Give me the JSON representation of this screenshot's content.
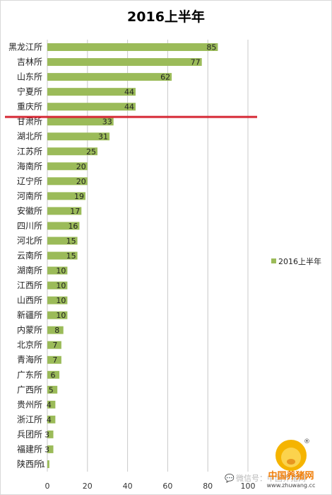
{
  "chart_data": {
    "type": "bar",
    "orientation": "horizontal",
    "title": "2016上半年",
    "categories": [
      "黑龙江所",
      "吉林所",
      "山东所",
      "宁夏所",
      "重庆所",
      "甘肃所",
      "湖北所",
      "江苏所",
      "海南所",
      "辽宁所",
      "河南所",
      "安徽所",
      "四川所",
      "河北所",
      "云南所",
      "湖南所",
      "江西所",
      "山西所",
      "新疆所",
      "内蒙所",
      "北京所",
      "青海所",
      "广东所",
      "广西所",
      "贵州所",
      "浙江所",
      "兵团所",
      "福建所",
      "陕西所"
    ],
    "series": [
      {
        "name": "2016上半年",
        "values": [
          85,
          77,
          62,
          44,
          44,
          33,
          31,
          25,
          20,
          20,
          19,
          17,
          16,
          15,
          15,
          10,
          10,
          10,
          10,
          8,
          7,
          7,
          6,
          5,
          4,
          4,
          3,
          3,
          1
        ]
      }
    ],
    "xlim": [
      0,
      100
    ],
    "xticks": [
      0,
      20,
      40,
      60,
      80,
      100
    ],
    "grid": true,
    "legend_position": "right",
    "bar_color": "#9bbb59",
    "cutoff_line": {
      "after_category": "重庆所",
      "color": "#d62a36"
    }
  },
  "watermark": {
    "wechat_text": "微信号：中国养猪网",
    "logo_text": "中国养猪网",
    "logo_url": "www.zhuwang.cc",
    "registered_mark": "®"
  }
}
